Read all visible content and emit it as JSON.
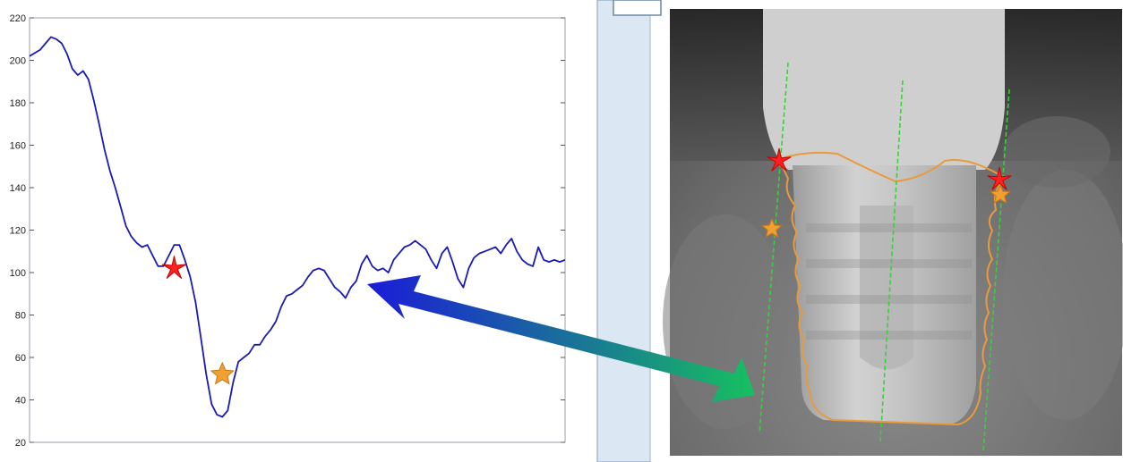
{
  "chart_data": {
    "type": "line",
    "title": "",
    "xlabel": "",
    "ylabel": "",
    "ylim": [
      20,
      220
    ],
    "yticks": [
      20,
      40,
      60,
      80,
      100,
      120,
      140,
      160,
      180,
      200,
      220
    ],
    "grid": false,
    "x_range": [
      0,
      100
    ],
    "series": [
      {
        "color": "#1a1ab4",
        "points": [
          [
            0,
            202
          ],
          [
            2,
            205
          ],
          [
            3,
            208
          ],
          [
            4,
            211
          ],
          [
            5,
            210
          ],
          [
            6,
            208
          ],
          [
            7,
            203
          ],
          [
            8,
            196
          ],
          [
            9,
            193
          ],
          [
            10,
            195
          ],
          [
            11,
            191
          ],
          [
            12,
            181
          ],
          [
            13,
            170
          ],
          [
            14,
            158
          ],
          [
            15,
            148
          ],
          [
            16,
            140
          ],
          [
            17,
            131
          ],
          [
            18,
            122
          ],
          [
            19,
            117
          ],
          [
            20,
            114
          ],
          [
            21,
            112
          ],
          [
            22,
            113
          ],
          [
            23,
            108
          ],
          [
            24,
            103
          ],
          [
            25,
            103
          ],
          [
            26,
            108
          ],
          [
            27,
            113
          ],
          [
            28,
            113
          ],
          [
            29,
            106
          ],
          [
            30,
            98
          ],
          [
            31,
            86
          ],
          [
            32,
            69
          ],
          [
            33,
            52
          ],
          [
            34,
            38
          ],
          [
            35,
            33
          ],
          [
            36,
            32
          ],
          [
            37,
            35
          ],
          [
            38,
            48
          ],
          [
            39,
            58
          ],
          [
            40,
            60
          ],
          [
            41,
            62
          ],
          [
            42,
            66
          ],
          [
            43,
            66
          ],
          [
            44,
            70
          ],
          [
            45,
            73
          ],
          [
            46,
            77
          ],
          [
            47,
            84
          ],
          [
            48,
            89
          ],
          [
            49,
            90
          ],
          [
            50,
            92
          ],
          [
            51,
            94
          ],
          [
            52,
            98
          ],
          [
            53,
            101
          ],
          [
            54,
            102
          ],
          [
            55,
            101
          ],
          [
            56,
            97
          ],
          [
            57,
            93
          ],
          [
            58,
            91
          ],
          [
            59,
            88
          ],
          [
            60,
            93
          ],
          [
            61,
            96
          ],
          [
            62,
            104
          ],
          [
            63,
            108
          ],
          [
            64,
            103
          ],
          [
            65,
            101
          ],
          [
            66,
            102
          ],
          [
            67,
            100
          ],
          [
            68,
            106
          ],
          [
            69,
            109
          ],
          [
            70,
            112
          ],
          [
            71,
            113
          ],
          [
            72,
            115
          ],
          [
            73,
            113
          ],
          [
            74,
            111
          ],
          [
            75,
            106
          ],
          [
            76,
            102
          ],
          [
            77,
            109
          ],
          [
            78,
            112
          ],
          [
            79,
            105
          ],
          [
            80,
            97
          ],
          [
            81,
            93
          ],
          [
            82,
            102
          ],
          [
            83,
            107
          ],
          [
            84,
            109
          ],
          [
            85,
            110
          ],
          [
            86,
            111
          ],
          [
            87,
            112
          ],
          [
            88,
            109
          ],
          [
            89,
            113
          ],
          [
            90,
            116
          ],
          [
            91,
            110
          ],
          [
            92,
            106
          ],
          [
            93,
            104
          ],
          [
            94,
            103
          ],
          [
            95,
            112
          ],
          [
            96,
            106
          ],
          [
            97,
            105
          ],
          [
            98,
            106
          ],
          [
            99,
            105
          ],
          [
            100,
            106
          ]
        ]
      }
    ],
    "markers": [
      {
        "shape": "star",
        "color": "#ff2020",
        "x": 27,
        "y": 102
      },
      {
        "shape": "star",
        "color": "#f0a030",
        "x": 36,
        "y": 52
      }
    ]
  },
  "colors": {
    "plot_border": "#9aa0a8",
    "side_panel": "#dce7f4",
    "side_panel_border": "#7f9db9",
    "arrow_start": "#1b1bd8",
    "arrow_end": "#17c060",
    "implant_outline": "#e89a3c",
    "guide_line": "#3ad03a"
  },
  "image_panel": {
    "description_icon": "dental-implant-xray-image",
    "markers": [
      {
        "shape": "star",
        "color": "#ff2020",
        "side": "left"
      },
      {
        "shape": "star",
        "color": "#f0a030",
        "side": "left"
      },
      {
        "shape": "star",
        "color": "#ff2020",
        "side": "right"
      },
      {
        "shape": "star",
        "color": "#f0a030",
        "side": "right"
      }
    ]
  }
}
